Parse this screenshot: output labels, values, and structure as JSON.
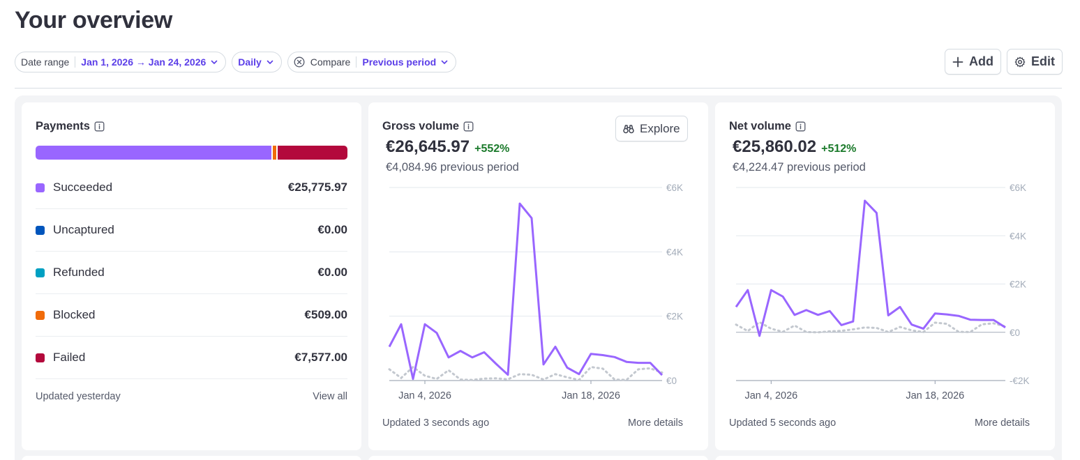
{
  "page": {
    "title": "Your overview"
  },
  "filters": {
    "date_range_label": "Date range",
    "date_range_value": "Jan 1, 2026 → Jan 24, 2026",
    "interval_value": "Daily",
    "compare_label": "Compare",
    "compare_value": "Previous period"
  },
  "actions": {
    "add_label": "Add",
    "edit_label": "Edit"
  },
  "colors": {
    "accent": "#5b3ee8",
    "series": "#9966ff",
    "previous": "#c3c8cf",
    "positive": "#1b7a2b"
  },
  "payments": {
    "title": "Payments",
    "statuses": [
      {
        "label": "Succeeded",
        "amount": "€25,775.97",
        "value": 25775.97,
        "color": "#9966ff"
      },
      {
        "label": "Uncaptured",
        "amount": "€0.00",
        "value": 0,
        "color": "#0055bc"
      },
      {
        "label": "Refunded",
        "amount": "€0.00",
        "value": 0,
        "color": "#00a0c2"
      },
      {
        "label": "Blocked",
        "amount": "€509.00",
        "value": 509,
        "color": "#f06b0a"
      },
      {
        "label": "Failed",
        "amount": "€7,577.00",
        "value": 7577,
        "color": "#b3093c"
      }
    ],
    "updated": "Updated yesterday",
    "view_all": "View all"
  },
  "gross_volume": {
    "title": "Gross volume",
    "explore_label": "Explore",
    "value": "€26,645.97",
    "delta": "+552%",
    "previous": "€4,084.96 previous period",
    "updated": "Updated 3 seconds ago",
    "more_details": "More details"
  },
  "net_volume": {
    "title": "Net volume",
    "value": "€25,860.02",
    "delta": "+512%",
    "previous": "€4,224.47 previous period",
    "updated": "Updated 5 seconds ago",
    "more_details": "More details"
  },
  "chart_data": [
    {
      "type": "line",
      "title": "Gross volume",
      "x": [
        "2026-01-01",
        "2026-01-02",
        "2026-01-03",
        "2026-01-04",
        "2026-01-05",
        "2026-01-06",
        "2026-01-07",
        "2026-01-08",
        "2026-01-09",
        "2026-01-10",
        "2026-01-11",
        "2026-01-12",
        "2026-01-13",
        "2026-01-14",
        "2026-01-15",
        "2026-01-16",
        "2026-01-17",
        "2026-01-18",
        "2026-01-19",
        "2026-01-20",
        "2026-01-21",
        "2026-01-22",
        "2026-01-23",
        "2026-01-24"
      ],
      "x_tick_labels": [
        "Jan 4, 2026",
        "Jan 18, 2026"
      ],
      "x_tick_dates": [
        "2026-01-04",
        "2026-01-18"
      ],
      "ylim": [
        0,
        6000
      ],
      "y_ticks": [
        0,
        2000,
        4000,
        6000
      ],
      "y_tick_labels": [
        "€0",
        "€2K",
        "€4K",
        "€6K"
      ],
      "grid": true,
      "series": [
        {
          "values": [
            1050,
            1750,
            50,
            1750,
            1480,
            720,
            920,
            720,
            880,
            520,
            180,
            5500,
            5050,
            500,
            1050,
            400,
            200,
            830,
            790,
            730,
            580,
            550,
            550,
            170
          ]
        },
        {
          "style": "dotted",
          "values": [
            350,
            80,
            420,
            150,
            50,
            320,
            30,
            20,
            60,
            70,
            40,
            200,
            180,
            30,
            200,
            100,
            20,
            420,
            370,
            30,
            20,
            350,
            380,
            250
          ]
        }
      ]
    },
    {
      "type": "line",
      "title": "Net volume",
      "x": [
        "2026-01-01",
        "2026-01-02",
        "2026-01-03",
        "2026-01-04",
        "2026-01-05",
        "2026-01-06",
        "2026-01-07",
        "2026-01-08",
        "2026-01-09",
        "2026-01-10",
        "2026-01-11",
        "2026-01-12",
        "2026-01-13",
        "2026-01-14",
        "2026-01-15",
        "2026-01-16",
        "2026-01-17",
        "2026-01-18",
        "2026-01-19",
        "2026-01-20",
        "2026-01-21",
        "2026-01-22",
        "2026-01-23",
        "2026-01-24"
      ],
      "x_tick_labels": [
        "Jan 4, 2026",
        "Jan 18, 2026"
      ],
      "x_tick_dates": [
        "2026-01-04",
        "2026-01-18"
      ],
      "ylim": [
        -2000,
        6000
      ],
      "y_ticks": [
        -2000,
        0,
        2000,
        4000,
        6000
      ],
      "y_tick_labels": [
        "-€2K",
        "€0",
        "€2K",
        "€4K",
        "€6K"
      ],
      "grid": true,
      "series": [
        {
          "values": [
            1050,
            1750,
            -150,
            1750,
            1480,
            720,
            920,
            720,
            880,
            300,
            450,
            5450,
            4950,
            700,
            1050,
            320,
            150,
            780,
            740,
            680,
            520,
            510,
            510,
            200
          ]
        },
        {
          "style": "dotted",
          "values": [
            320,
            50,
            420,
            150,
            20,
            280,
            10,
            0,
            40,
            60,
            120,
            200,
            180,
            10,
            220,
            80,
            10,
            400,
            350,
            20,
            10,
            330,
            370,
            240
          ]
        }
      ]
    }
  ]
}
